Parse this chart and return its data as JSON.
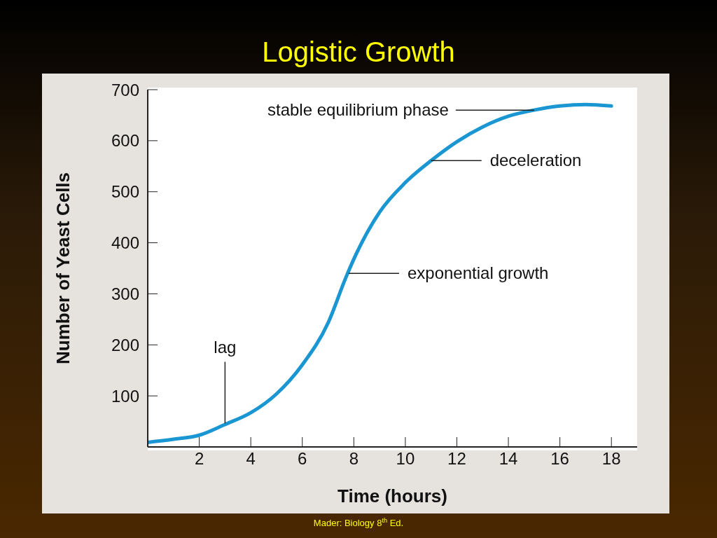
{
  "chart_data": {
    "type": "line",
    "title": "Logistic Growth",
    "xlabel": "Time (hours)",
    "ylabel": "Number of Yeast Cells",
    "x": [
      0,
      1,
      2,
      3,
      4,
      5,
      6,
      7,
      7.7,
      8,
      9,
      10,
      11,
      12,
      13,
      14,
      15,
      16,
      17,
      18
    ],
    "series": [
      {
        "color": "#1a96d2",
        "values": [
          9,
          15,
          23,
          44,
          67,
          104,
          161,
          243,
          333,
          368,
          460,
          518,
          561,
          598,
          627,
          648,
          660,
          668,
          671,
          668
        ]
      }
    ],
    "xlim": [
      0,
      19
    ],
    "xticks": [
      2,
      4,
      6,
      8,
      10,
      12,
      14,
      16,
      18
    ],
    "ylim": [
      0,
      700
    ],
    "yticks": [
      100,
      200,
      300,
      400,
      500,
      600,
      700
    ],
    "grid": false,
    "legend": false,
    "marker": "none",
    "line_style": "solid",
    "annotations": [
      {
        "text": "lag",
        "x": 3,
        "y": 46
      },
      {
        "text": "exponential growth",
        "x": 7.8,
        "y": 340
      },
      {
        "text": "deceleration",
        "x": 11,
        "y": 561
      },
      {
        "text": "stable equilibrium phase",
        "x": 15,
        "y": 660
      },
      "Mader: Biology 8$^{th}$ Ed."
    ]
  }
}
